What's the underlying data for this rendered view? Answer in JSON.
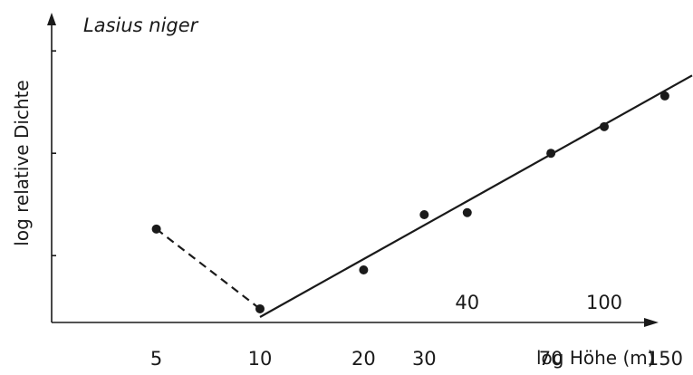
{
  "chart_data": {
    "type": "scatter",
    "title": "Lasius niger",
    "xlabel": "log Höhe (m)",
    "ylabel": "log relative Dichte",
    "x_scale": "log",
    "x_ticks_below": [
      5,
      10,
      20,
      30,
      70,
      150
    ],
    "x_ticks_above": [
      40,
      100
    ],
    "x_tick_labels_below": [
      "5",
      "10",
      "20",
      "30",
      "70",
      "150"
    ],
    "x_tick_labels_above": [
      "40",
      "100"
    ],
    "series": [
      {
        "x": [
          5,
          10,
          20,
          30,
          40,
          70,
          100,
          150
        ],
        "y": [
          0.86,
          0.08,
          0.46,
          1.0,
          1.02,
          1.6,
          1.86,
          2.16
        ]
      }
    ],
    "trend_segments": [
      {
        "style": "dashed",
        "x": [
          5,
          10
        ],
        "y": [
          0.86,
          0.08
        ]
      },
      {
        "style": "solid",
        "x": [
          10,
          180
        ],
        "y": [
          0.0,
          2.36
        ]
      }
    ],
    "y_ticks": [
      0.6,
      1.6,
      2.6
    ],
    "ylim": [
      -0.1,
      2.95
    ],
    "grid": false,
    "legend": "none",
    "colors": {
      "ink": "#1a1a1a",
      "background": "#ffffff"
    }
  }
}
